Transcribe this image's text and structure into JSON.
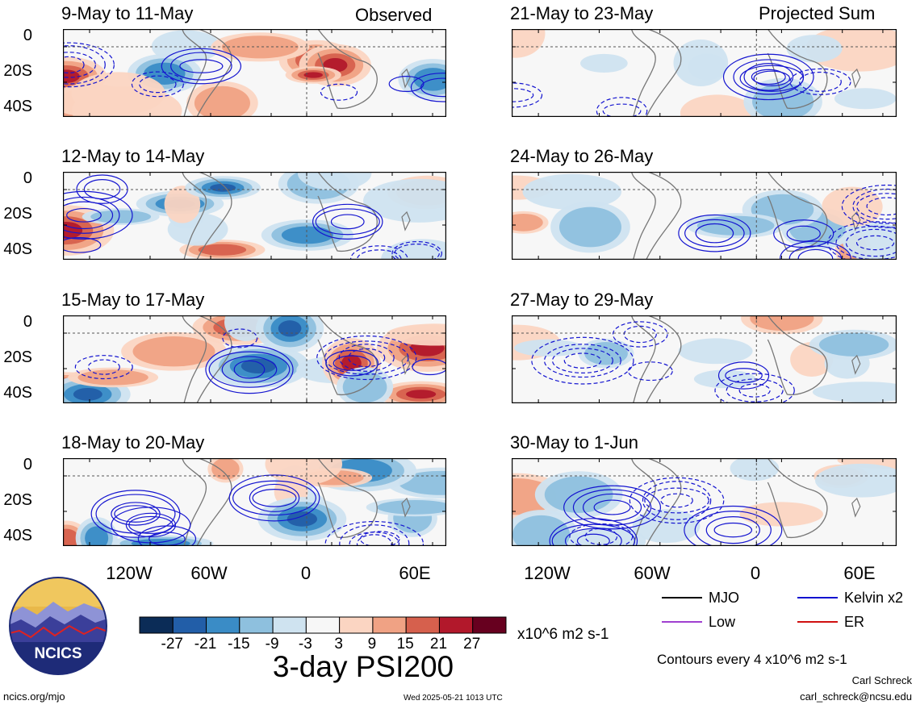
{
  "labels": {
    "observed": "Observed",
    "projected": "Projected Sum",
    "footer_left": "ncics.org/mjo",
    "footer_timestamp": "Wed 2025-05-21 1013 UTC",
    "author": "Carl Schreck",
    "email": "carl_schreck@ncsu.edu",
    "main_title": "3-day PSI200",
    "units": "x10^6 m2 s-1",
    "contour_note": "Contours every 4 x10^6 m2 s-1",
    "logo_text": "NCICS"
  },
  "legend": [
    {
      "name": "MJO",
      "color": "#000000"
    },
    {
      "name": "Kelvin x2",
      "color": "#1010d0"
    },
    {
      "name": "Low",
      "color": "#a040d0"
    },
    {
      "name": "ER",
      "color": "#d01010"
    }
  ],
  "chart_data": {
    "type": "heatmap",
    "variable": "3-day PSI200",
    "units": "x10^6 m2 s-1",
    "contour_interval": 4,
    "colorbar": {
      "labels": [
        "-27",
        "-21",
        "-15",
        "-9",
        "-3",
        "3",
        "9",
        "15",
        "21",
        "27"
      ],
      "colors": [
        "#0b2c57",
        "#225ea8",
        "#3a8cc6",
        "#8ec0de",
        "#cfe3f0",
        "#f7f7f7",
        "#fbd5c2",
        "#f0a284",
        "#d6604d",
        "#b2182b",
        "#67001f"
      ]
    },
    "x_ticks": [
      "120W",
      "60W",
      "0",
      "60E"
    ],
    "y_ticks": [
      "0",
      "20S",
      "40S"
    ],
    "panels": [
      {
        "title": "9-May to 11-May",
        "column": "Observed"
      },
      {
        "title": "12-May to 14-May",
        "column": "Observed"
      },
      {
        "title": "15-May to 17-May",
        "column": "Observed"
      },
      {
        "title": "18-May to 20-May",
        "column": "Observed"
      },
      {
        "title": "21-May to 23-May",
        "column": "Projected Sum"
      },
      {
        "title": "24-May to 26-May",
        "column": "Projected Sum"
      },
      {
        "title": "27-May to 29-May",
        "column": "Projected Sum"
      },
      {
        "title": "30-May to 1-Jun",
        "column": "Projected Sum"
      }
    ]
  }
}
